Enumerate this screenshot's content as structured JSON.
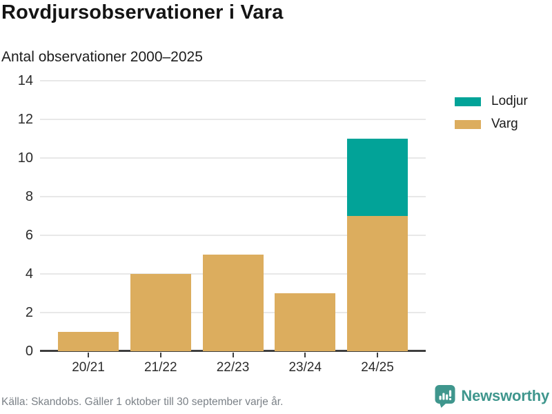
{
  "header": {
    "title": "Rovdjursobservationer i Vara",
    "subtitle": "Antal observationer 2000–2025"
  },
  "chart_data": {
    "type": "bar",
    "stacked": true,
    "title": "Rovdjursobservationer i Vara",
    "subtitle": "Antal observationer 2000–2025",
    "categories": [
      "20/21",
      "21/22",
      "22/23",
      "23/24",
      "24/25"
    ],
    "series": [
      {
        "name": "Lodjur",
        "color": "#02a398",
        "values": [
          0,
          0,
          0,
          0,
          4
        ]
      },
      {
        "name": "Varg",
        "color": "#dcad5e",
        "values": [
          1,
          4,
          5,
          3,
          7
        ]
      }
    ],
    "stack_order_bottom_to_top": [
      "Varg",
      "Lodjur"
    ],
    "totals": [
      1,
      4,
      5,
      3,
      11
    ],
    "xlabel": "",
    "ylabel": "",
    "ylim": [
      0,
      14
    ],
    "yticks": [
      0,
      2,
      4,
      6,
      8,
      10,
      12,
      14
    ],
    "grid": true,
    "legend_position": "right"
  },
  "footer": {
    "source": "Källa: Skandobs. Gäller 1 oktober till 30 september varje år.",
    "brand": "Newsworthy",
    "brand_color": "#3f968d"
  }
}
